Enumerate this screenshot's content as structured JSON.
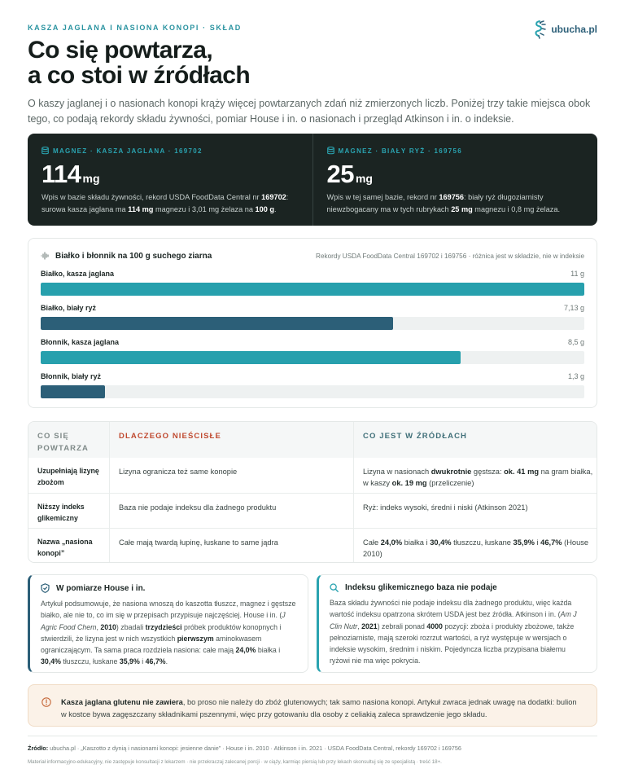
{
  "header": {
    "eyebrow": "KASZA JAGLANA I NASIONA KONOPI · SKŁAD",
    "brand": "ubucha.pl",
    "title_line1": "Co się powtarza,",
    "title_line2": "a co stoi w źródłach",
    "lead": "O kaszy jaglanej i o nasionach konopi krąży więcej powtarzanych zdań niż zmierzonych liczb. Poniżej trzy takie miejsca obok tego, co podają rekordy składu żywności, pomiar House i in. o nasionach i przegląd Atkinson i in. o indeksie."
  },
  "stats": [
    {
      "label": "MAGNEZ · KASZA JAGLANA · 169702",
      "value": "114",
      "unit": "mg",
      "desc_parts": [
        {
          "t": "Wpis w bazie składu żywności, rekord USDA FoodData Central nr "
        },
        {
          "t": "169702",
          "b": true
        },
        {
          "t": ": surowa kasza jaglana ma "
        },
        {
          "t": "114 mg",
          "b": true
        },
        {
          "t": " magnezu i 3,01 mg żelaza na "
        },
        {
          "t": "100 g",
          "b": true
        },
        {
          "t": "."
        }
      ]
    },
    {
      "label": "MAGNEZ · BIAŁY RYŻ · 169756",
      "value": "25",
      "unit": "mg",
      "desc_parts": [
        {
          "t": "Wpis w tej samej bazie, rekord nr "
        },
        {
          "t": "169756",
          "b": true
        },
        {
          "t": ": biały ryż długoziarnisty niewzbogacany ma w tych rubrykach "
        },
        {
          "t": "25 mg",
          "b": true
        },
        {
          "t": " magnezu i 0,8 mg żelaza."
        }
      ]
    }
  ],
  "chart_data": {
    "type": "bar",
    "title": "Białko i błonnik na 100 g suchego ziarna",
    "source": "Rekordy USDA FoodData Central 169702 i 169756 · różnica jest w składzie, nie w indeksie",
    "unit": "g",
    "max": 11,
    "bars": [
      {
        "label": "Białko, kasza jaglana",
        "value": 11,
        "display": "11 g",
        "color": "#27a0ad"
      },
      {
        "label": "Białko, biały ryż",
        "value": 7.13,
        "display": "7,13 g",
        "color": "#2c5f78"
      },
      {
        "label": "Błonnik, kasza jaglana",
        "value": 8.5,
        "display": "8,5 g",
        "color": "#27a0ad"
      },
      {
        "label": "Błonnik, biały ryż",
        "value": 1.3,
        "display": "1,3 g",
        "color": "#2c5f78"
      }
    ]
  },
  "table": {
    "headers": [
      "CO SIĘ POWTARZA",
      "DLACZEGO NIEŚCISŁE",
      "CO JEST W ŹRÓDŁACH"
    ],
    "rows": [
      {
        "claim": "Uzupełniają lizynę zbożom",
        "why": [
          {
            "t": "Lizyna ogranicza też same konopie"
          }
        ],
        "source": [
          {
            "t": "Lizyna w nasionach "
          },
          {
            "t": "dwukrotnie",
            "b": true
          },
          {
            "t": " gęstsza: "
          },
          {
            "t": "ok. 41 mg",
            "b": true
          },
          {
            "t": " na gram białka, w kaszy "
          },
          {
            "t": "ok. 19 mg",
            "b": true
          },
          {
            "t": " (przeliczenie)"
          }
        ]
      },
      {
        "claim": "Niższy indeks glikemiczny",
        "why": [
          {
            "t": "Baza nie podaje indeksu dla żadnego produktu"
          }
        ],
        "source": [
          {
            "t": "Ryż: indeks wysoki, średni i niski (Atkinson 2021)"
          }
        ]
      },
      {
        "claim": "Nazwa „nasiona konopi”",
        "why": [
          {
            "t": "Całe mają twardą łupinę, łuskane to same jądra"
          }
        ],
        "source": [
          {
            "t": "Całe "
          },
          {
            "t": "24,0%",
            "b": true
          },
          {
            "t": " białka i "
          },
          {
            "t": "30,4%",
            "b": true
          },
          {
            "t": " tłuszczu, łuskane "
          },
          {
            "t": "35,9%",
            "b": true
          },
          {
            "t": " i "
          },
          {
            "t": "46,7%",
            "b": true
          },
          {
            "t": " (House 2010)"
          }
        ]
      }
    ]
  },
  "cards": [
    {
      "title": "W pomiarze House i in.",
      "icon": "shield-icon",
      "parts": [
        {
          "t": "Artykuł podsumowuje, że nasiona wnoszą do kaszotta tłuszcz, magnez i gęstsze białko, ale nie to, co im się w przepisach przypisuje najczęściej. House i in. ("
        },
        {
          "t": "J Agric Food Chem",
          "i": true
        },
        {
          "t": ", "
        },
        {
          "t": "2010",
          "b": true
        },
        {
          "t": ") zbadali "
        },
        {
          "t": "trzydzieści",
          "b": true
        },
        {
          "t": " próbek produktów konopnych i stwierdzili, że lizyna jest w nich wszystkich "
        },
        {
          "t": "pierwszym",
          "b": true
        },
        {
          "t": " aminokwasem ograniczającym. Ta sama praca rozdziela nasiona: całe mają "
        },
        {
          "t": "24,0%",
          "b": true
        },
        {
          "t": " białka i "
        },
        {
          "t": "30,4%",
          "b": true
        },
        {
          "t": " tłuszczu, łuskane "
        },
        {
          "t": "35,9%",
          "b": true
        },
        {
          "t": " i "
        },
        {
          "t": "46,7%",
          "b": true
        },
        {
          "t": "."
        }
      ]
    },
    {
      "title": "Indeksu glikemicznego baza nie podaje",
      "icon": "search-icon",
      "parts": [
        {
          "t": "Baza składu żywności nie podaje indeksu dla żadnego produktu, więc każda wartość indeksu opatrzona skrótem USDA jest bez źródła. Atkinson i in. ("
        },
        {
          "t": "Am J Clin Nutr",
          "i": true
        },
        {
          "t": ", "
        },
        {
          "t": "2021",
          "b": true
        },
        {
          "t": ") zebrali ponad "
        },
        {
          "t": "4000",
          "b": true
        },
        {
          "t": " pozycji: zboża i produkty zbożowe, także pełnoziarniste, mają szeroki rozrzut wartości, a ryż występuje w wersjach o indeksie wysokim, średnim i niskim. Pojedyncza liczba przypisana białemu ryżowi nie ma więc pokrycia."
        }
      ]
    }
  ],
  "warning": {
    "icon": "alert-circle-icon",
    "parts": [
      {
        "t": "Kasza jaglana glutenu nie zawiera",
        "b": true
      },
      {
        "t": ", bo proso nie należy do zbóż glutenowych; tak samo nasiona konopi. Artykuł zwraca jednak uwagę na dodatki: bulion w kostce bywa zagęszczany składnikami pszennymi, więc przy gotowaniu dla osoby z celiakią zaleca sprawdzenie jego składu."
      }
    ]
  },
  "footer": {
    "source_label": "Źródło:",
    "source_text": " ubucha.pl · „Kaszotto z dynią i nasionami konopi: jesienne danie” · House i in. 2010 · Atkinson i in. 2021 · USDA FoodData Central, rekordy 169702 i 169756",
    "disclaimer": "Materiał informacyjno-edukacyjny, nie zastępuje konsultacji z lekarzem · nie przekraczaj zalecanej porcji · w ciąży, karmiąc piersią lub przy lekach skonsultuj się ze specjalistą · treść 18+."
  },
  "colors": {
    "accent": "#2aa3b0",
    "navy": "#2c5f78",
    "danger": "#c04a30",
    "dark": "#1b2422",
    "warn_bg": "#fbf2e8"
  }
}
